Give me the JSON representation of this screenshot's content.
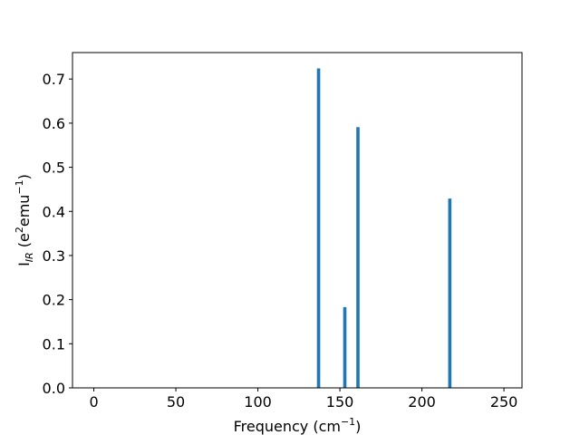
{
  "chart_data": {
    "type": "bar",
    "title": "",
    "xlabel": {
      "main": "Frequency (cm",
      "sup": "−1",
      "tail": ")"
    },
    "ylabel": {
      "main": "I",
      "sub": "IR",
      "mid": " (e",
      "sup1": "2",
      "mid2": "emu",
      "sup2": "−1",
      "tail": ")"
    },
    "xlim": [
      -13,
      261
    ],
    "ylim": [
      0,
      0.76
    ],
    "xticks": [
      0,
      50,
      100,
      150,
      200,
      250
    ],
    "xtick_labels": [
      "0",
      "50",
      "100",
      "150",
      "200",
      "250"
    ],
    "yticks": [
      0.0,
      0.1,
      0.2,
      0.3,
      0.4,
      0.5,
      0.6,
      0.7
    ],
    "ytick_labels": [
      "0.0",
      "0.1",
      "0.2",
      "0.3",
      "0.4",
      "0.5",
      "0.6",
      "0.7"
    ],
    "bar_width": 2,
    "color": "#1f77b4",
    "grid": false,
    "x": [
      137,
      153,
      161,
      217
    ],
    "values": [
      0.724,
      0.183,
      0.591,
      0.429
    ]
  }
}
